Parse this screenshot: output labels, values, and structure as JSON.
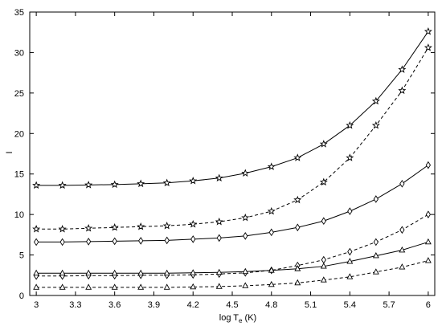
{
  "chart_data": {
    "type": "line",
    "title": "",
    "xlabel": "log T",
    "xlabel_sub": "e",
    "xlabel_unit": " (K)",
    "ylabel": "I",
    "xlim": [
      2.95,
      6.05
    ],
    "ylim": [
      0,
      35
    ],
    "xticks": [
      "3",
      "3.3",
      "3.6",
      "3.9",
      "4.2",
      "4.5",
      "4.8",
      "5.1",
      "5.4",
      "5.7",
      "6"
    ],
    "yticks": [
      "0",
      "5",
      "10",
      "15",
      "20",
      "25",
      "30",
      "35"
    ],
    "x": [
      3.0,
      3.2,
      3.4,
      3.6,
      3.8,
      4.0,
      4.2,
      4.4,
      4.6,
      4.8,
      5.0,
      5.2,
      5.4,
      5.6,
      5.8,
      6.0
    ],
    "series": [
      {
        "marker": "star",
        "line_style": "solid",
        "values": [
          13.6,
          13.6,
          13.65,
          13.7,
          13.8,
          13.9,
          14.15,
          14.5,
          15.1,
          15.9,
          17.0,
          18.7,
          21.0,
          24.0,
          27.9,
          32.6
        ]
      },
      {
        "marker": "star",
        "line_style": "dashed",
        "values": [
          8.2,
          8.2,
          8.3,
          8.4,
          8.5,
          8.6,
          8.8,
          9.1,
          9.6,
          10.4,
          11.8,
          14.0,
          17.0,
          21.0,
          25.3,
          30.6
        ]
      },
      {
        "marker": "diamond",
        "line_style": "solid",
        "values": [
          6.6,
          6.6,
          6.65,
          6.7,
          6.75,
          6.8,
          6.95,
          7.1,
          7.35,
          7.8,
          8.4,
          9.2,
          10.4,
          11.9,
          13.8,
          16.1
        ]
      },
      {
        "marker": "diamond",
        "line_style": "dashed",
        "values": [
          2.4,
          2.4,
          2.45,
          2.45,
          2.5,
          2.5,
          2.55,
          2.65,
          2.8,
          3.1,
          3.7,
          4.4,
          5.4,
          6.6,
          8.1,
          10.0
        ]
      },
      {
        "marker": "triangle",
        "line_style": "solid",
        "values": [
          2.75,
          2.75,
          2.75,
          2.75,
          2.75,
          2.75,
          2.8,
          2.85,
          2.95,
          3.1,
          3.3,
          3.6,
          4.2,
          4.9,
          5.6,
          6.6
        ]
      },
      {
        "marker": "triangle",
        "line_style": "dashed",
        "values": [
          1.0,
          1.0,
          1.0,
          1.0,
          1.0,
          1.0,
          1.05,
          1.1,
          1.2,
          1.35,
          1.55,
          1.9,
          2.3,
          2.9,
          3.5,
          4.3
        ]
      }
    ]
  }
}
